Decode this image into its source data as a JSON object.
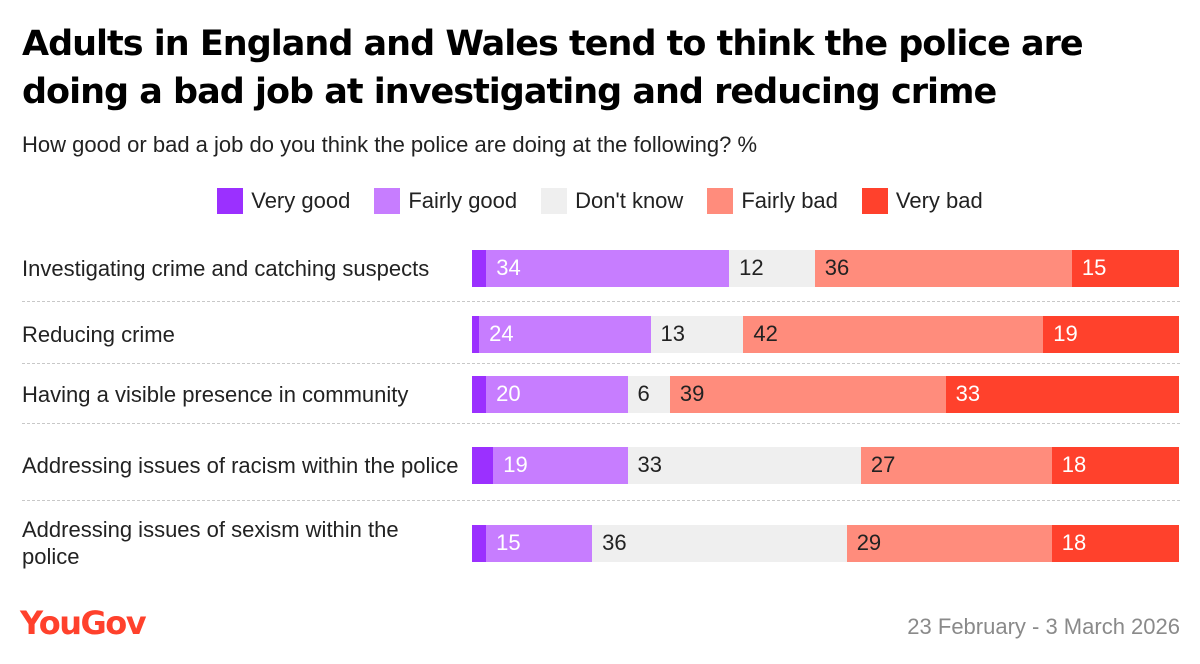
{
  "title": "Adults in England and Wales tend to think the police are doing a bad job at investigating and reducing crime",
  "subtitle": "How good or bad a job do you think the police are doing at the following? %",
  "footer": {
    "brand": "YouGov",
    "date": "23 February - 3 March 2026"
  },
  "colors": {
    "very_good": "#9b30ff",
    "fairly_good": "#c77dff",
    "dont_know": "#efefef",
    "fairly_bad": "#ff8c7c",
    "very_bad": "#ff412c",
    "brand": "#ff412c"
  },
  "chart_data": {
    "type": "bar",
    "orientation": "horizontal",
    "stacked": true,
    "title": "Adults in England and Wales tend to think the police are doing a bad job at investigating and reducing crime",
    "subtitle": "How good or bad a job do you think the police are doing at the following? %",
    "legend_position": "top",
    "grid": false,
    "xlim": [
      0,
      100
    ],
    "categories": [
      "Investigating crime and catching suspects",
      "Reducing crime",
      "Having a visible presence in community",
      "Addressing issues of racism within the police",
      "Addressing issues of sexism within the police"
    ],
    "series": [
      {
        "key": "very_good",
        "name": "Very good",
        "color": "#9b30ff",
        "values": [
          2,
          1,
          2,
          3,
          2
        ]
      },
      {
        "key": "fairly_good",
        "name": "Fairly good",
        "color": "#c77dff",
        "values": [
          34,
          24,
          20,
          19,
          15
        ]
      },
      {
        "key": "dont_know",
        "name": "Don't know",
        "color": "#efefef",
        "values": [
          12,
          13,
          6,
          33,
          36
        ]
      },
      {
        "key": "fairly_bad",
        "name": "Fairly bad",
        "color": "#ff8c7c",
        "values": [
          36,
          42,
          39,
          27,
          29
        ]
      },
      {
        "key": "very_bad",
        "name": "Very bad",
        "color": "#ff412c",
        "values": [
          15,
          19,
          33,
          18,
          18
        ]
      }
    ],
    "data_labels_shown": {
      "very_good": false,
      "fairly_good": true,
      "dont_know": true,
      "fairly_bad": true,
      "very_bad": true
    }
  }
}
